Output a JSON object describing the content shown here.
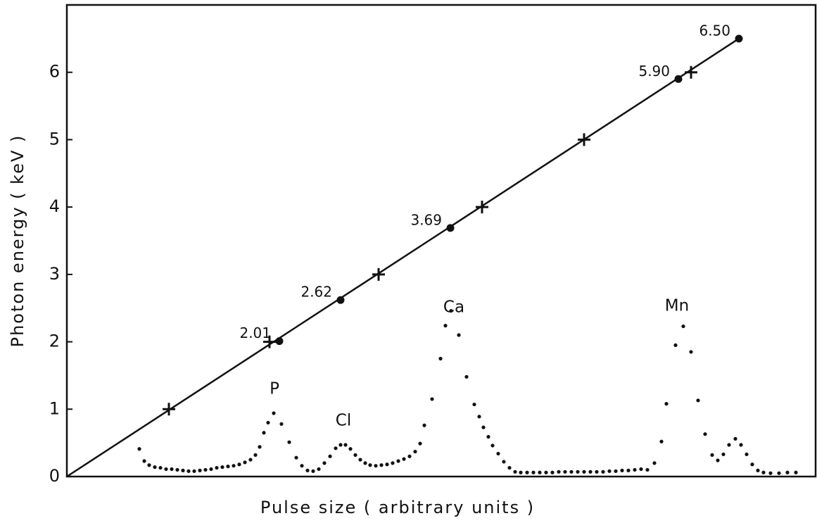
{
  "chart_data": {
    "type": "scatter",
    "x_label": "Pulse size   ( arbitrary units )",
    "y_label": "Photon energy   ( keV )",
    "xlim": [
      0,
      1065
    ],
    "ylim": [
      0,
      7
    ],
    "yticks": [
      0,
      1,
      2,
      3,
      4,
      5,
      6
    ],
    "series": [
      {
        "kind": "line",
        "color": "#111111",
        "x": [
          0,
          955
        ],
        "values": [
          0,
          6.5
        ]
      },
      {
        "kind": "cross",
        "color": "#111111",
        "x": [
          145,
          288,
          443,
          590,
          735,
          887
        ],
        "values": [
          1,
          2,
          3,
          4,
          5,
          6
        ]
      },
      {
        "kind": "dot",
        "color": "#111111",
        "x": [
          302,
          389,
          545,
          869,
          955
        ],
        "values": [
          2.01,
          2.62,
          3.69,
          5.9,
          6.5
        ],
        "value_labels": [
          "2.01",
          "2.62",
          "3.69",
          "5.90",
          "6.50"
        ]
      },
      {
        "kind": "spectrum",
        "color": "#111111",
        "x": [
          103,
          110,
          117,
          125,
          133,
          141,
          149,
          157,
          165,
          173,
          181,
          189,
          197,
          205,
          213,
          221,
          229,
          237,
          245,
          253,
          261,
          268,
          274,
          280,
          286,
          294,
          305,
          316,
          326,
          334,
          342,
          350,
          358,
          366,
          374,
          382,
          389,
          396,
          403,
          410,
          417,
          424,
          431,
          439,
          447,
          455,
          463,
          471,
          479,
          487,
          495,
          502,
          508,
          519,
          531,
          538,
          546,
          557,
          568,
          579,
          586,
          592,
          599,
          605,
          613,
          621,
          629,
          637,
          645,
          654,
          663,
          672,
          681,
          690,
          699,
          708,
          717,
          726,
          735,
          744,
          753,
          762,
          771,
          780,
          789,
          798,
          807,
          816,
          825,
          835,
          845,
          852,
          865,
          876,
          887,
          897,
          907,
          917,
          925,
          933,
          941,
          950,
          958,
          966,
          974,
          982,
          990,
          1000,
          1012,
          1024,
          1036
        ],
        "values": [
          0.41,
          0.23,
          0.17,
          0.14,
          0.13,
          0.11,
          0.11,
          0.1,
          0.09,
          0.08,
          0.08,
          0.09,
          0.1,
          0.11,
          0.13,
          0.14,
          0.15,
          0.16,
          0.18,
          0.21,
          0.25,
          0.32,
          0.44,
          0.65,
          0.8,
          0.94,
          0.78,
          0.51,
          0.28,
          0.16,
          0.09,
          0.08,
          0.11,
          0.2,
          0.3,
          0.42,
          0.47,
          0.47,
          0.41,
          0.32,
          0.25,
          0.2,
          0.17,
          0.16,
          0.17,
          0.18,
          0.2,
          0.23,
          0.26,
          0.3,
          0.37,
          0.49,
          0.76,
          1.15,
          1.75,
          2.24,
          2.46,
          2.1,
          1.48,
          1.07,
          0.89,
          0.73,
          0.59,
          0.46,
          0.34,
          0.22,
          0.13,
          0.07,
          0.06,
          0.06,
          0.06,
          0.06,
          0.06,
          0.06,
          0.07,
          0.07,
          0.07,
          0.07,
          0.07,
          0.07,
          0.07,
          0.07,
          0.08,
          0.08,
          0.09,
          0.09,
          0.1,
          0.11,
          0.1,
          0.2,
          0.52,
          1.08,
          1.95,
          2.23,
          1.85,
          1.13,
          0.63,
          0.32,
          0.24,
          0.33,
          0.47,
          0.56,
          0.47,
          0.33,
          0.18,
          0.09,
          0.06,
          0.05,
          0.05,
          0.06,
          0.06
        ]
      }
    ],
    "annotations": [
      "P",
      "Cl",
      "Ca",
      "Mn"
    ]
  }
}
